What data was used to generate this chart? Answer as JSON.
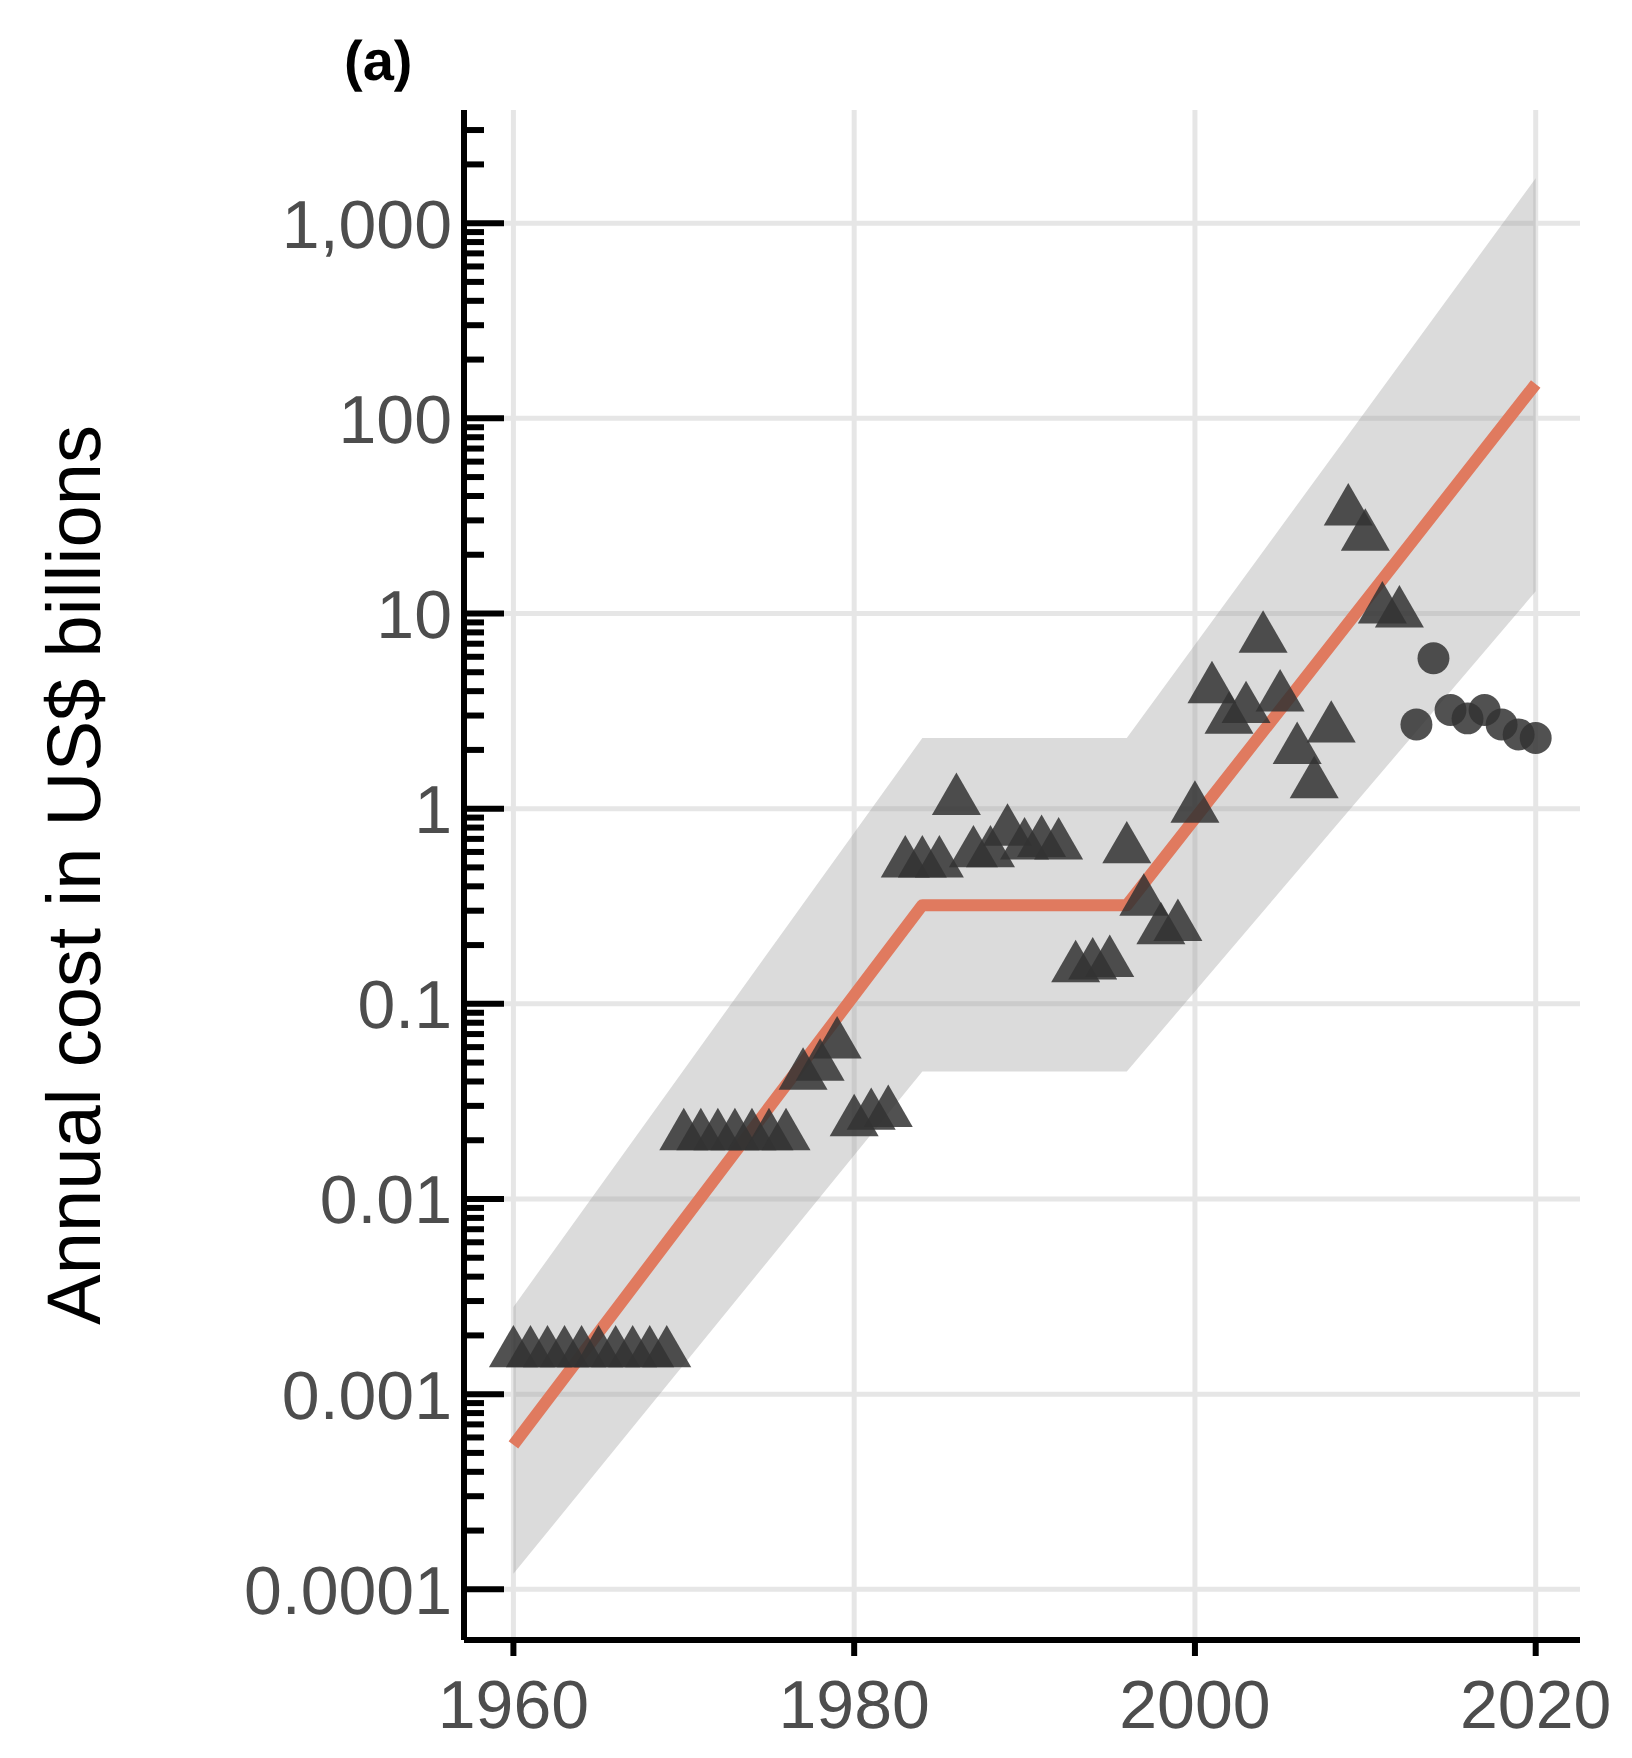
{
  "chart_data": {
    "type": "scatter",
    "title": "(a)",
    "ylabel": "Annual cost in US$ billions",
    "log": "y",
    "grid": true,
    "xlim": [
      1957.1,
      2022.6
    ],
    "xticks": [
      1960,
      1980,
      2000,
      2020
    ],
    "ylim": [
      5.5e-05,
      3800
    ],
    "yticks": [
      {
        "value": 0.0001,
        "label": "0.0001"
      },
      {
        "value": 0.0002,
        "label": null
      },
      {
        "value": 0.0003,
        "label": null
      },
      {
        "value": 0.0004,
        "label": null
      },
      {
        "value": 0.0005,
        "label": null
      },
      {
        "value": 0.0006,
        "label": null
      },
      {
        "value": 0.0007,
        "label": null
      },
      {
        "value": 0.0008,
        "label": null
      },
      {
        "value": 0.0009,
        "label": null
      },
      {
        "value": 0.001,
        "label": "0.001"
      },
      {
        "value": 0.002,
        "label": null
      },
      {
        "value": 0.003,
        "label": null
      },
      {
        "value": 0.004,
        "label": null
      },
      {
        "value": 0.005,
        "label": null
      },
      {
        "value": 0.006,
        "label": null
      },
      {
        "value": 0.007,
        "label": null
      },
      {
        "value": 0.008,
        "label": null
      },
      {
        "value": 0.009,
        "label": null
      },
      {
        "value": 0.01,
        "label": "0.01"
      },
      {
        "value": 0.02,
        "label": null
      },
      {
        "value": 0.03,
        "label": null
      },
      {
        "value": 0.04,
        "label": null
      },
      {
        "value": 0.05,
        "label": null
      },
      {
        "value": 0.06,
        "label": null
      },
      {
        "value": 0.07,
        "label": null
      },
      {
        "value": 0.08,
        "label": null
      },
      {
        "value": 0.09,
        "label": null
      },
      {
        "value": 0.1,
        "label": "0.1"
      },
      {
        "value": 0.2,
        "label": null
      },
      {
        "value": 0.3,
        "label": null
      },
      {
        "value": 0.4,
        "label": null
      },
      {
        "value": 0.5,
        "label": null
      },
      {
        "value": 0.6,
        "label": null
      },
      {
        "value": 0.7,
        "label": null
      },
      {
        "value": 0.8,
        "label": null
      },
      {
        "value": 0.9,
        "label": null
      },
      {
        "value": 1,
        "label": "1"
      },
      {
        "value": 2,
        "label": null
      },
      {
        "value": 3,
        "label": null
      },
      {
        "value": 4,
        "label": null
      },
      {
        "value": 5,
        "label": null
      },
      {
        "value": 6,
        "label": null
      },
      {
        "value": 7,
        "label": null
      },
      {
        "value": 8,
        "label": null
      },
      {
        "value": 9,
        "label": null
      },
      {
        "value": 10,
        "label": "10"
      },
      {
        "value": 20,
        "label": null
      },
      {
        "value": 30,
        "label": null
      },
      {
        "value": 40,
        "label": null
      },
      {
        "value": 50,
        "label": null
      },
      {
        "value": 60,
        "label": null
      },
      {
        "value": 70,
        "label": null
      },
      {
        "value": 80,
        "label": null
      },
      {
        "value": 90,
        "label": null
      },
      {
        "value": 100,
        "label": "100"
      },
      {
        "value": 200,
        "label": null
      },
      {
        "value": 300,
        "label": null
      },
      {
        "value": 400,
        "label": null
      },
      {
        "value": 500,
        "label": null
      },
      {
        "value": 600,
        "label": null
      },
      {
        "value": 700,
        "label": null
      },
      {
        "value": 800,
        "label": null
      },
      {
        "value": 900,
        "label": null
      },
      {
        "value": 1000,
        "label": "1,000"
      },
      {
        "value": 2000,
        "label": null
      },
      {
        "value": 3000,
        "label": null
      }
    ],
    "series": [
      {
        "type": "line",
        "color": "#e07a5f",
        "x": [
          1960,
          1984,
          1996,
          2020
        ],
        "values": [
          0.00055,
          0.32,
          0.32,
          150
        ],
        "lower": [
          0.00012,
          0.045,
          0.045,
          13
        ],
        "upper": [
          0.0028,
          2.3,
          2.3,
          1700
        ],
        "marker": "none",
        "line_style": "solid"
      },
      {
        "color": "#333333",
        "marker": "triangle",
        "x": [
          1960,
          1961,
          1962,
          1963,
          1964,
          1965,
          1966,
          1967,
          1968,
          1969,
          1970,
          1971,
          1972,
          1973,
          1974,
          1975,
          1976,
          1977,
          1978,
          1979,
          1980,
          1981,
          1982,
          1983,
          1984,
          1985,
          1986,
          1987,
          1988,
          1989,
          1990,
          1991,
          1992,
          1993,
          1994,
          1995,
          1996,
          1997,
          1998,
          1999,
          2000,
          2001,
          2002,
          2003,
          2004,
          2005,
          2006,
          2007,
          2008,
          2009,
          2010,
          2011,
          2012
        ],
        "values": [
          0.0017,
          0.0017,
          0.0017,
          0.0017,
          0.0017,
          0.0017,
          0.0017,
          0.0017,
          0.0017,
          0.0017,
          0.022,
          0.022,
          0.022,
          0.022,
          0.022,
          0.022,
          0.022,
          0.045,
          0.05,
          0.065,
          0.026,
          0.028,
          0.029,
          0.55,
          0.55,
          0.55,
          1.15,
          0.62,
          0.62,
          0.8,
          0.68,
          0.7,
          0.68,
          0.16,
          0.165,
          0.17,
          0.65,
          0.35,
          0.25,
          0.26,
          1.05,
          4.3,
          3.0,
          3.4,
          7.8,
          3.9,
          2.1,
          1.4,
          2.7,
          35,
          26,
          11,
          10.5
        ]
      },
      {
        "color": "#333333",
        "marker": "circle",
        "x": [
          2013,
          2014,
          2015,
          2016,
          2017,
          2018,
          2019,
          2020
        ],
        "values": [
          2.7,
          5.9,
          3.2,
          2.9,
          3.2,
          2.7,
          2.4,
          2.3
        ]
      }
    ]
  }
}
